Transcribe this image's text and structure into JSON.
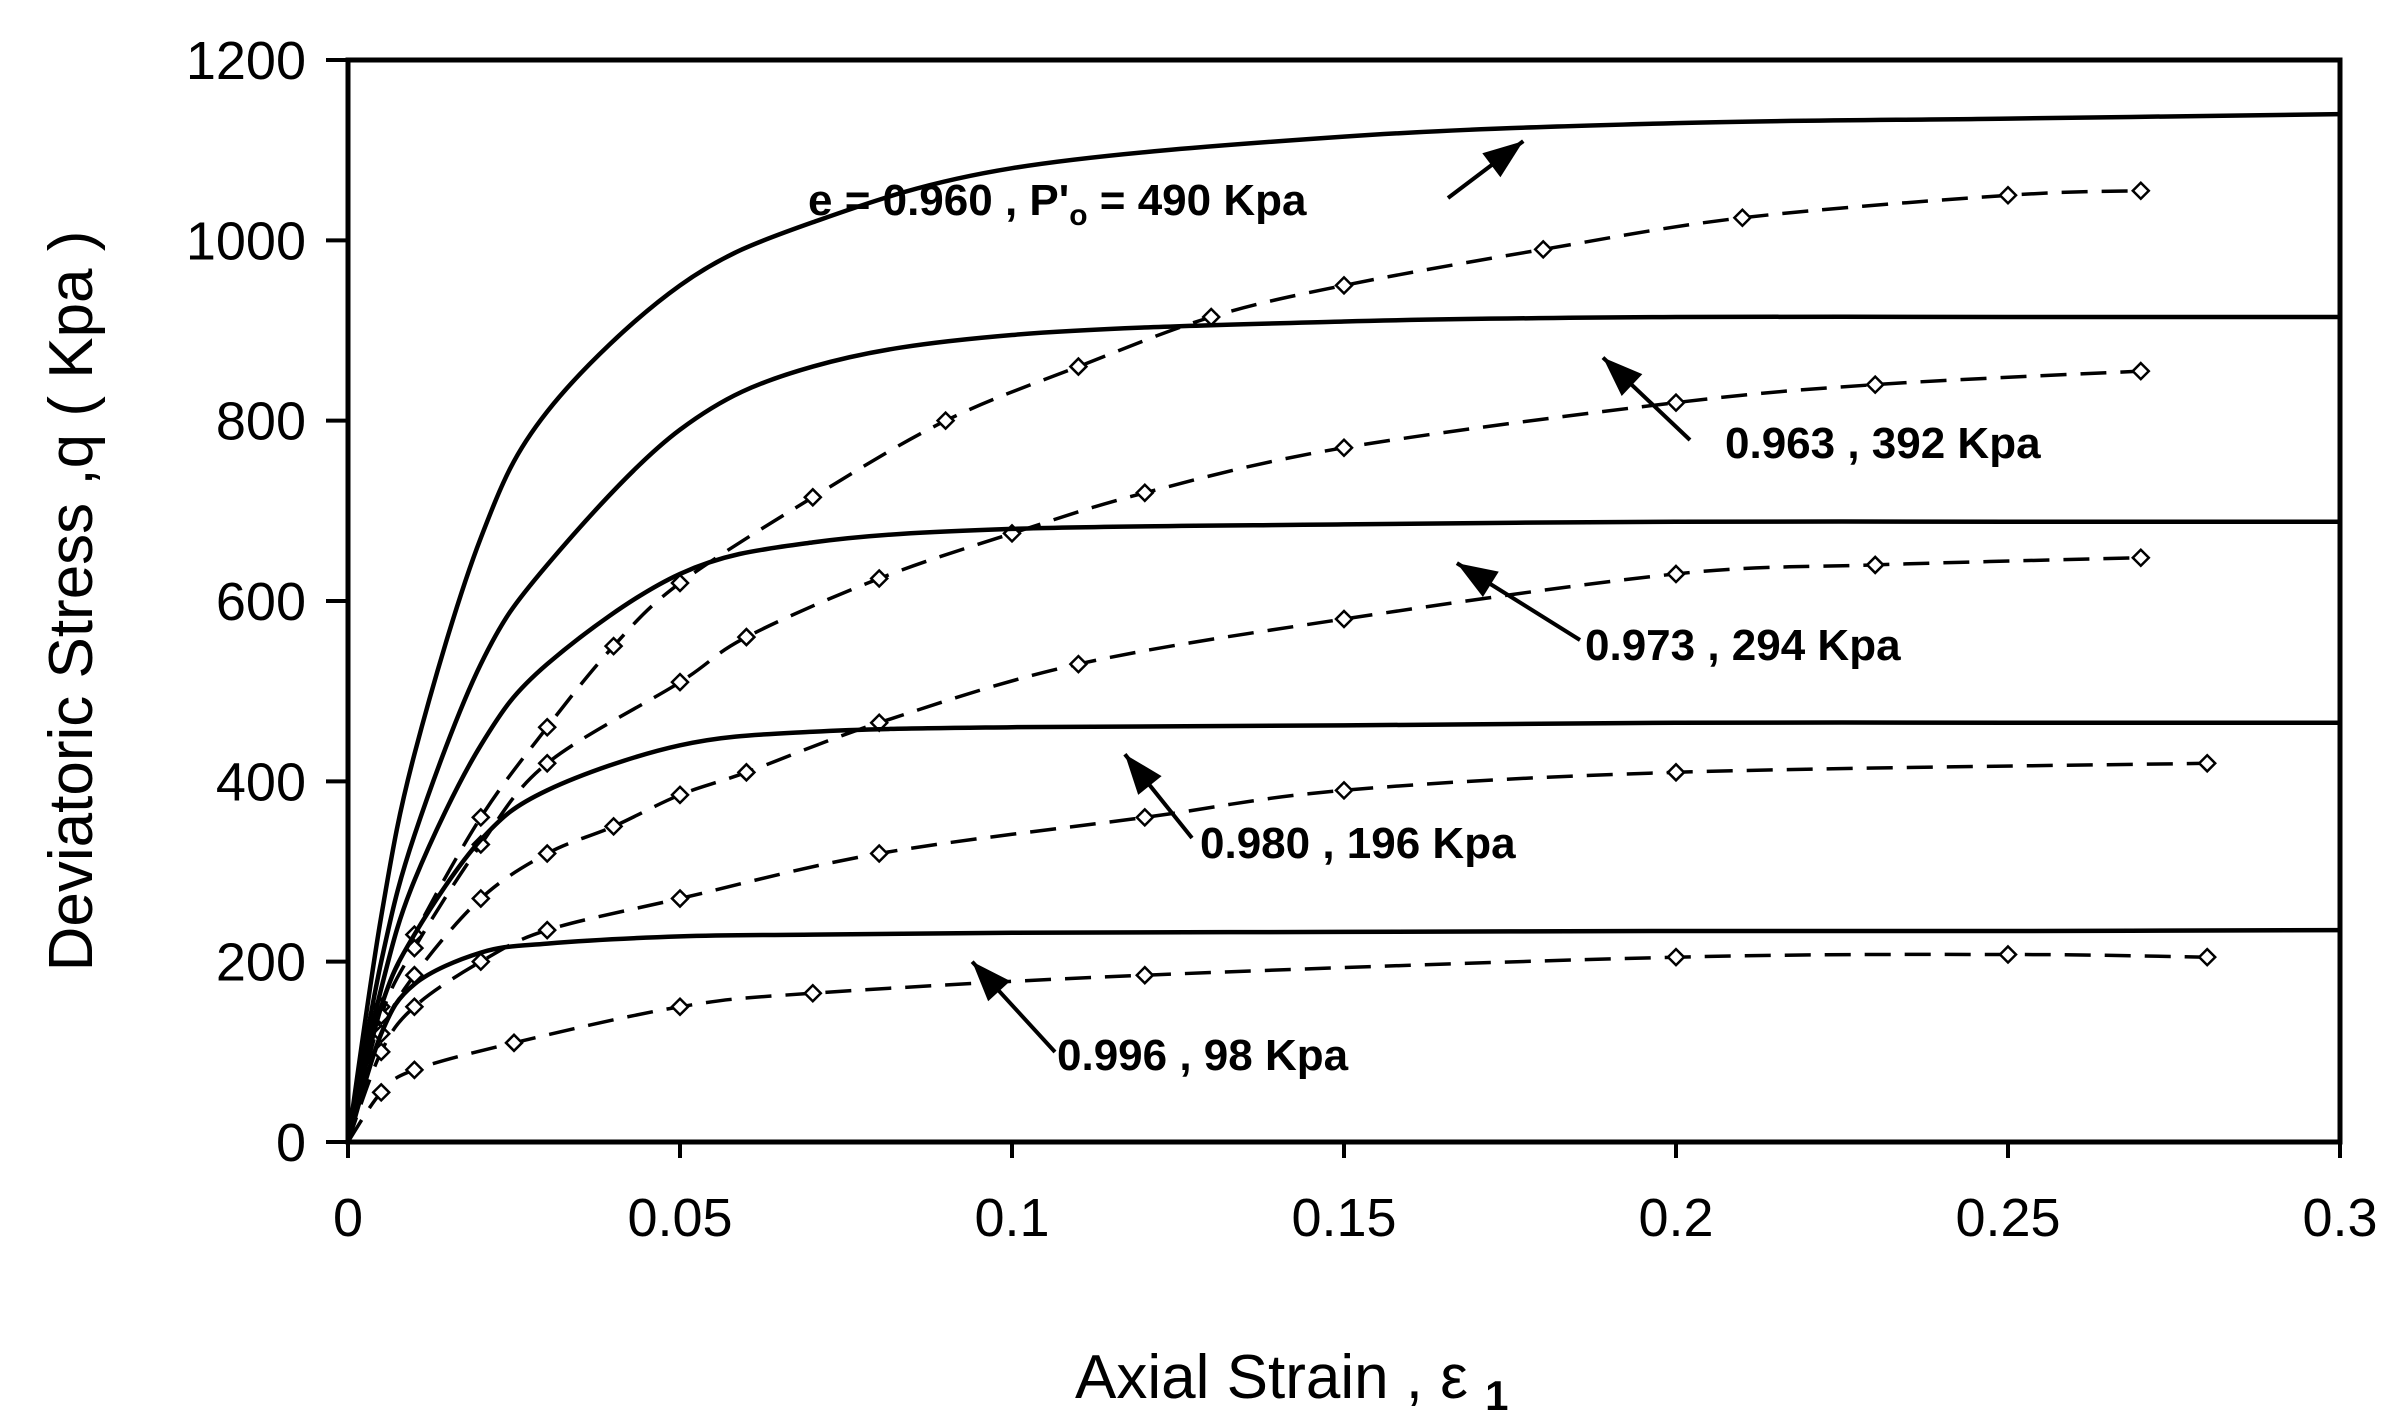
{
  "chart_data": {
    "type": "line",
    "title": "",
    "xlabel": "Axial Strain , ε",
    "xlabel_sub": "1",
    "ylabel": "Deviatoric Stress ,q  ( Kpa )",
    "xlim": [
      0,
      0.3
    ],
    "ylim": [
      0,
      1200
    ],
    "x_ticks": [
      0,
      0.05,
      0.1,
      0.15,
      0.2,
      0.25,
      0.3
    ],
    "x_tick_labels": [
      "0",
      "0.05",
      "0.1",
      "0.15",
      "0.2",
      "0.25",
      "0.3"
    ],
    "y_ticks": [
      0,
      200,
      400,
      600,
      800,
      1000,
      1200
    ],
    "y_tick_labels": [
      "0",
      "200",
      "400",
      "600",
      "800",
      "1000",
      "1200"
    ],
    "grid": false,
    "legend": "none",
    "series": [
      {
        "style": "solid",
        "curve": {
          "q_ult": 1140,
          "k": 0.018
        },
        "x": [
          0,
          0.005,
          0.01,
          0.02,
          0.03,
          0.05,
          0.07,
          0.1,
          0.15,
          0.2,
          0.25,
          0.3
        ],
        "values": [
          0,
          250,
          430,
          670,
          810,
          950,
          1020,
          1080,
          1115,
          1130,
          1135,
          1140
        ]
      },
      {
        "style": "dashed",
        "x": [
          0,
          0.005,
          0.01,
          0.02,
          0.03,
          0.04,
          0.05,
          0.07,
          0.09,
          0.11,
          0.13,
          0.15,
          0.18,
          0.21,
          0.25,
          0.27
        ],
        "values": [
          0,
          150,
          230,
          360,
          460,
          550,
          620,
          715,
          800,
          860,
          915,
          950,
          990,
          1025,
          1050,
          1055
        ]
      },
      {
        "style": "solid",
        "x": [
          0,
          0.005,
          0.01,
          0.02,
          0.03,
          0.05,
          0.07,
          0.1,
          0.15,
          0.2,
          0.25,
          0.3
        ],
        "values": [
          0,
          200,
          340,
          530,
          640,
          790,
          860,
          895,
          910,
          915,
          915,
          915
        ]
      },
      {
        "style": "dashed",
        "x": [
          0,
          0.005,
          0.01,
          0.02,
          0.03,
          0.05,
          0.06,
          0.08,
          0.1,
          0.12,
          0.15,
          0.2,
          0.23,
          0.27
        ],
        "values": [
          0,
          140,
          215,
          330,
          420,
          510,
          560,
          625,
          675,
          720,
          770,
          820,
          840,
          855
        ]
      },
      {
        "style": "solid",
        "x": [
          0,
          0.005,
          0.01,
          0.02,
          0.03,
          0.05,
          0.07,
          0.1,
          0.15,
          0.2,
          0.25,
          0.3
        ],
        "values": [
          0,
          170,
          290,
          440,
          530,
          630,
          665,
          680,
          685,
          688,
          688,
          688
        ]
      },
      {
        "style": "dashed",
        "x": [
          0,
          0.005,
          0.01,
          0.02,
          0.03,
          0.04,
          0.05,
          0.06,
          0.08,
          0.11,
          0.15,
          0.2,
          0.23,
          0.27
        ],
        "values": [
          0,
          120,
          185,
          270,
          320,
          350,
          385,
          410,
          465,
          530,
          580,
          630,
          640,
          648
        ]
      },
      {
        "style": "solid",
        "x": [
          0,
          0.005,
          0.01,
          0.02,
          0.03,
          0.05,
          0.07,
          0.1,
          0.15,
          0.2,
          0.25,
          0.3
        ],
        "values": [
          0,
          150,
          230,
          335,
          390,
          440,
          455,
          460,
          462,
          465,
          465,
          465
        ]
      },
      {
        "style": "dashed",
        "x": [
          0,
          0.005,
          0.01,
          0.02,
          0.03,
          0.05,
          0.08,
          0.12,
          0.15,
          0.2,
          0.28
        ],
        "values": [
          0,
          100,
          150,
          200,
          235,
          270,
          320,
          360,
          390,
          410,
          420
        ]
      },
      {
        "style": "solid",
        "x": [
          0,
          0.005,
          0.01,
          0.02,
          0.03,
          0.05,
          0.07,
          0.1,
          0.15,
          0.2,
          0.25,
          0.3
        ],
        "values": [
          0,
          120,
          175,
          210,
          220,
          228,
          230,
          232,
          233,
          234,
          234,
          235
        ]
      },
      {
        "style": "dashed",
        "x": [
          0,
          0.005,
          0.01,
          0.025,
          0.05,
          0.07,
          0.12,
          0.2,
          0.25,
          0.28
        ],
        "values": [
          0,
          55,
          80,
          110,
          150,
          165,
          185,
          205,
          208,
          205
        ]
      }
    ],
    "annotations": [
      {
        "text": "e = 0.960 , P'",
        "sub": "o",
        "text2": " = 490 Kpa",
        "arrow_to": [
          0.177,
          1110
        ]
      },
      {
        "text": "0.963 , 392 Kpa",
        "arrow_to": [
          0.189,
          870
        ]
      },
      {
        "text": "0.973 , 294 Kpa",
        "arrow_to": [
          0.167,
          642
        ]
      },
      {
        "text": "0.980 , 196 Kpa",
        "arrow_to": [
          0.117,
          430
        ]
      },
      {
        "text": "0.996 , 98 Kpa",
        "arrow_to": [
          0.094,
          200
        ]
      }
    ]
  }
}
